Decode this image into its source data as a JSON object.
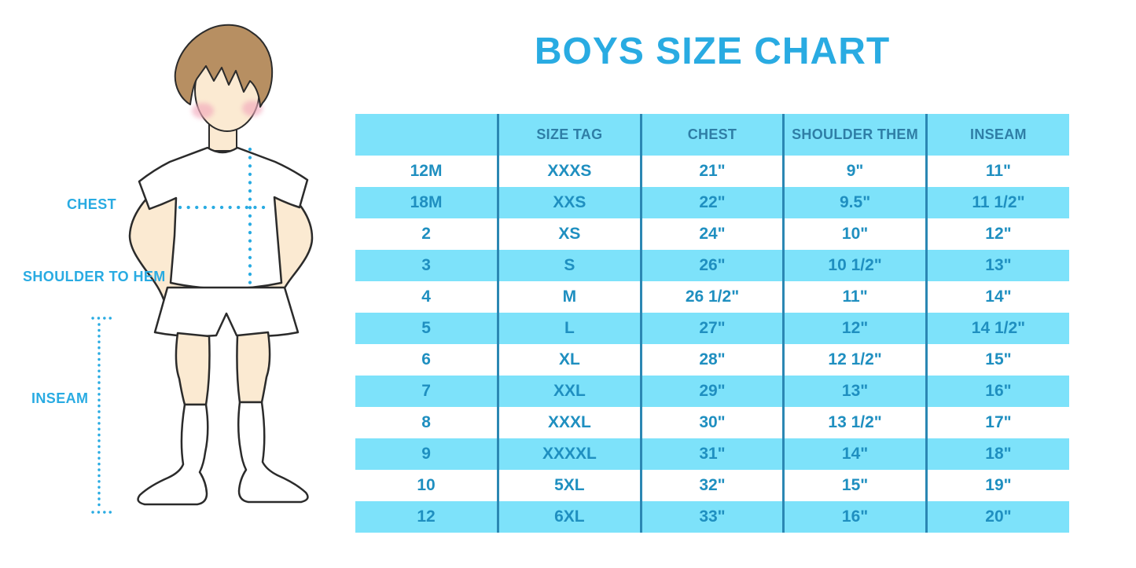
{
  "title": "BOYS SIZE CHART",
  "figure": {
    "labels": {
      "chest": "CHEST",
      "shoulder_to_hem": "SHOULDER TO HEM",
      "inseam": "INSEAM"
    }
  },
  "table": {
    "headers": [
      "",
      "SIZE TAG",
      "CHEST",
      "SHOULDER THEM",
      "INSEAM"
    ],
    "rows": [
      [
        "12M",
        "XXXS",
        "21\"",
        "9\"",
        "11\""
      ],
      [
        "18M",
        "XXS",
        "22\"",
        "9.5\"",
        "11 1/2\""
      ],
      [
        "2",
        "XS",
        "24\"",
        "10\"",
        "12\""
      ],
      [
        "3",
        "S",
        "26\"",
        "10 1/2\"",
        "13\""
      ],
      [
        "4",
        "M",
        "26 1/2\"",
        "11\"",
        "14\""
      ],
      [
        "5",
        "L",
        "27\"",
        "12\"",
        "14 1/2\""
      ],
      [
        "6",
        "XL",
        "28\"",
        "12 1/2\"",
        "15\""
      ],
      [
        "7",
        "XXL",
        "29\"",
        "13\"",
        "16\""
      ],
      [
        "8",
        "XXXL",
        "30\"",
        "13 1/2\"",
        "17\""
      ],
      [
        "9",
        "XXXXL",
        "31\"",
        "14\"",
        "18\""
      ],
      [
        "10",
        "5XL",
        "32\"",
        "15\"",
        "19\""
      ],
      [
        "12",
        "6XL",
        "33\"",
        "16\"",
        "20\""
      ]
    ]
  },
  "chart_data": {
    "type": "table",
    "title": "BOYS SIZE CHART",
    "columns": [
      "",
      "SIZE TAG",
      "CHEST",
      "SHOULDER THEM",
      "INSEAM"
    ],
    "rows": [
      [
        "12M",
        "XXXS",
        "21\"",
        "9\"",
        "11\""
      ],
      [
        "18M",
        "XXS",
        "22\"",
        "9.5\"",
        "11 1/2\""
      ],
      [
        "2",
        "XS",
        "24\"",
        "10\"",
        "12\""
      ],
      [
        "3",
        "S",
        "26\"",
        "10 1/2\"",
        "13\""
      ],
      [
        "4",
        "M",
        "26 1/2\"",
        "11\"",
        "14\""
      ],
      [
        "5",
        "L",
        "27\"",
        "12\"",
        "14 1/2\""
      ],
      [
        "6",
        "XL",
        "28\"",
        "12 1/2\"",
        "15\""
      ],
      [
        "7",
        "XXL",
        "29\"",
        "13\"",
        "16\""
      ],
      [
        "8",
        "XXXL",
        "30\"",
        "13 1/2\"",
        "17\""
      ],
      [
        "9",
        "XXXXL",
        "31\"",
        "14\"",
        "18\""
      ],
      [
        "10",
        "5XL",
        "32\"",
        "15\"",
        "19\""
      ],
      [
        "12",
        "6XL",
        "33\"",
        "16\"",
        "20\""
      ]
    ],
    "layout": {
      "striped": true,
      "stripe_color": "#7DE2FA",
      "first_row_white": true
    }
  },
  "colors": {
    "accent_blue": "#29ABE2",
    "row_blue": "#7DE2FA",
    "divider_blue": "#2B87B3",
    "header_text": "#2F7EA6",
    "body_text": "#1F8FC0",
    "skin": "#FBEAD2",
    "hair": "#B78F62",
    "blush": "#F2A9BC",
    "outline": "#2B2B2B"
  }
}
